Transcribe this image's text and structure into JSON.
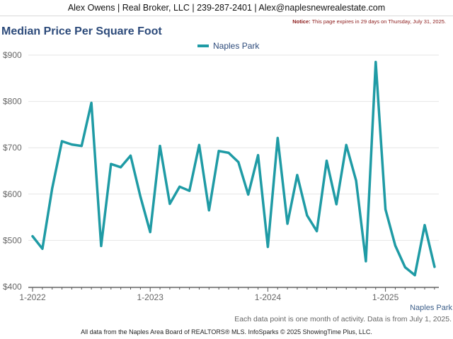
{
  "header": {
    "contact": "Alex Owens | Real Broker, LLC | 239-287-2401 | Alex@naplesnewrealestate.com",
    "notice_label": "Notice:",
    "notice_text": "This page expires in 29 days on Thursday, July 31, 2025."
  },
  "series_label": "Naples Park",
  "note": "Each data point is one month of activity. Data is from July 1, 2025.",
  "footer": "All data from the Naples Area Board of REALTORS® MLS. InfoSparks © 2025 ShowingTime Plus, LLC.",
  "colors": {
    "line": "#1f9ba5",
    "title": "#2c4a7a",
    "axis": "#555555"
  },
  "chart_data": {
    "type": "line",
    "title": "Median Price Per Square Foot",
    "series": [
      {
        "name": "Naples Park",
        "x": [
          "2022-01",
          "2022-02",
          "2022-03",
          "2022-04",
          "2022-05",
          "2022-06",
          "2022-07",
          "2022-08",
          "2022-09",
          "2022-10",
          "2022-11",
          "2022-12",
          "2023-01",
          "2023-02",
          "2023-03",
          "2023-04",
          "2023-05",
          "2023-06",
          "2023-07",
          "2023-08",
          "2023-09",
          "2023-10",
          "2023-11",
          "2023-12",
          "2024-01",
          "2024-02",
          "2024-03",
          "2024-04",
          "2024-05",
          "2024-06",
          "2024-07",
          "2024-08",
          "2024-09",
          "2024-10",
          "2024-11",
          "2024-12",
          "2025-01",
          "2025-02",
          "2025-03",
          "2025-04",
          "2025-05",
          "2025-06"
        ],
        "values": [
          509,
          482,
          612,
          714,
          707,
          704,
          797,
          488,
          665,
          658,
          683,
          595,
          518,
          704,
          579,
          616,
          607,
          706,
          565,
          693,
          689,
          669,
          599,
          684,
          486,
          721,
          536,
          641,
          554,
          520,
          672,
          578,
          706,
          629,
          455,
          885,
          567,
          489,
          442,
          425,
          533,
          443
        ]
      }
    ],
    "ylim": [
      400,
      900
    ],
    "yticks": [
      "$400",
      "$500",
      "$600",
      "$700",
      "$800",
      "$900"
    ],
    "xticks": [
      "1-2022",
      "1-2023",
      "1-2024",
      "1-2025"
    ],
    "grid": true,
    "legend": "top-center"
  }
}
